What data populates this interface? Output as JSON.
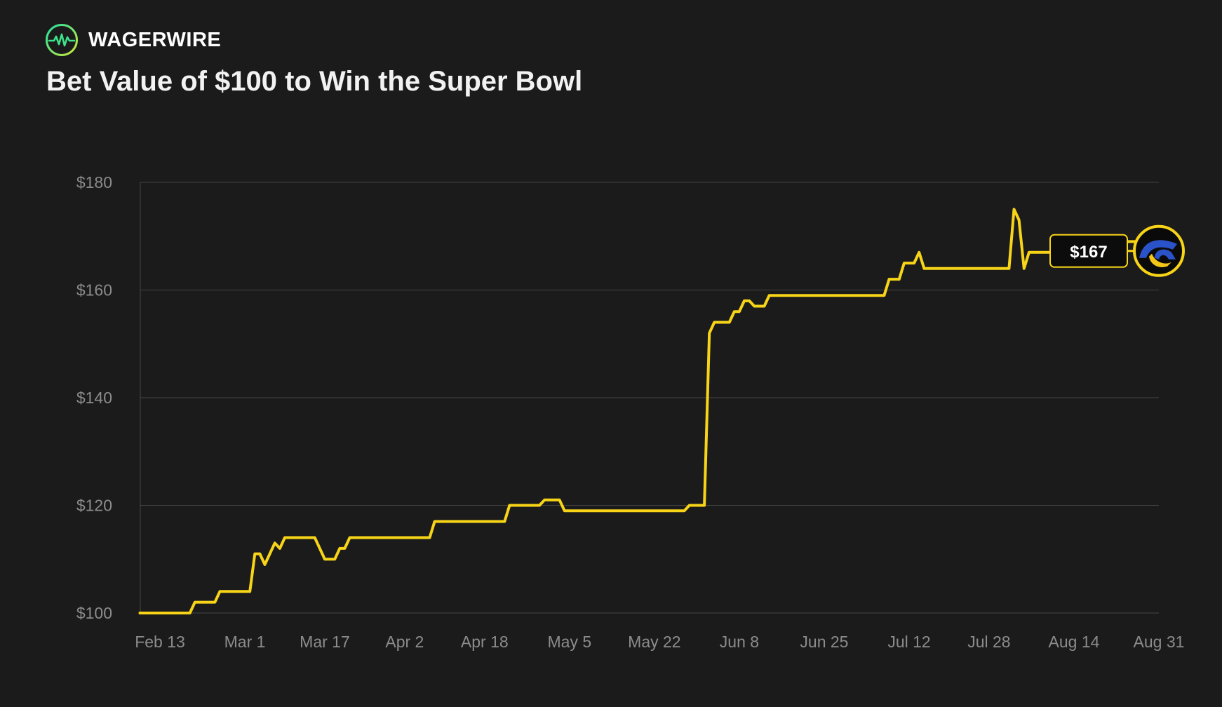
{
  "brand": {
    "name": "WAGERWIRE",
    "logo_icon": "pulse-circle-icon",
    "colors": {
      "ring_start": "#22e3a0",
      "ring_end": "#c8e639",
      "pulse": "#3ee38a"
    }
  },
  "chart_data": {
    "type": "line",
    "title": "Bet Value of $100 to Win the Super Bowl",
    "xlabel": "",
    "ylabel": "",
    "ylim": [
      100,
      180
    ],
    "yticks": [
      100,
      120,
      140,
      160,
      180
    ],
    "ytick_labels": [
      "$100",
      "$120",
      "$140",
      "$160",
      "$180"
    ],
    "grid": true,
    "line_color": "#f7d417",
    "background": "#1b1b1b",
    "xticks": [
      {
        "date": "2024-02-13",
        "label": "Feb 13"
      },
      {
        "date": "2024-03-01",
        "label": "Mar 1"
      },
      {
        "date": "2024-03-17",
        "label": "Mar 17"
      },
      {
        "date": "2024-04-02",
        "label": "Apr 2"
      },
      {
        "date": "2024-04-18",
        "label": "Apr 18"
      },
      {
        "date": "2024-05-05",
        "label": "May 5"
      },
      {
        "date": "2024-05-22",
        "label": "May 22"
      },
      {
        "date": "2024-06-08",
        "label": "Jun 8"
      },
      {
        "date": "2024-06-25",
        "label": "Jun 25"
      },
      {
        "date": "2024-07-12",
        "label": "Jul 12"
      },
      {
        "date": "2024-07-28",
        "label": "Jul 28"
      },
      {
        "date": "2024-08-14",
        "label": "Aug 14"
      },
      {
        "date": "2024-08-31",
        "label": "Aug 31"
      }
    ],
    "series": [
      {
        "points": [
          [
            "2024-02-09",
            100
          ],
          [
            "2024-02-19",
            100
          ],
          [
            "2024-02-20",
            102
          ],
          [
            "2024-02-24",
            102
          ],
          [
            "2024-02-25",
            104
          ],
          [
            "2024-03-02",
            104
          ],
          [
            "2024-03-03",
            111
          ],
          [
            "2024-03-04",
            111
          ],
          [
            "2024-03-05",
            109
          ],
          [
            "2024-03-07",
            113
          ],
          [
            "2024-03-08",
            112
          ],
          [
            "2024-03-09",
            114
          ],
          [
            "2024-03-15",
            114
          ],
          [
            "2024-03-17",
            110
          ],
          [
            "2024-03-19",
            110
          ],
          [
            "2024-03-20",
            112
          ],
          [
            "2024-03-21",
            112
          ],
          [
            "2024-03-22",
            114
          ],
          [
            "2024-04-07",
            114
          ],
          [
            "2024-04-08",
            117
          ],
          [
            "2024-04-22",
            117
          ],
          [
            "2024-04-23",
            120
          ],
          [
            "2024-04-29",
            120
          ],
          [
            "2024-04-30",
            121
          ],
          [
            "2024-05-03",
            121
          ],
          [
            "2024-05-04",
            119
          ],
          [
            "2024-05-28",
            119
          ],
          [
            "2024-05-29",
            120
          ],
          [
            "2024-06-01",
            120
          ],
          [
            "2024-06-02",
            152
          ],
          [
            "2024-06-03",
            154
          ],
          [
            "2024-06-06",
            154
          ],
          [
            "2024-06-07",
            156
          ],
          [
            "2024-06-08",
            156
          ],
          [
            "2024-06-09",
            158
          ],
          [
            "2024-06-10",
            158
          ],
          [
            "2024-06-11",
            157
          ],
          [
            "2024-06-13",
            157
          ],
          [
            "2024-06-14",
            159
          ],
          [
            "2024-07-07",
            159
          ],
          [
            "2024-07-08",
            162
          ],
          [
            "2024-07-10",
            162
          ],
          [
            "2024-07-11",
            165
          ],
          [
            "2024-07-13",
            165
          ],
          [
            "2024-07-14",
            167
          ],
          [
            "2024-07-15",
            164
          ],
          [
            "2024-08-01",
            164
          ],
          [
            "2024-08-02",
            175
          ],
          [
            "2024-08-03",
            173
          ],
          [
            "2024-08-04",
            164
          ],
          [
            "2024-08-05",
            167
          ],
          [
            "2024-08-10",
            167
          ],
          [
            "2024-08-11",
            170
          ],
          [
            "2024-08-23",
            170
          ],
          [
            "2024-08-24",
            169
          ],
          [
            "2024-08-28",
            169
          ]
        ]
      }
    ],
    "annotation": {
      "label": "$167",
      "value": 167,
      "team_icon": "la-rams-logo-icon"
    }
  }
}
